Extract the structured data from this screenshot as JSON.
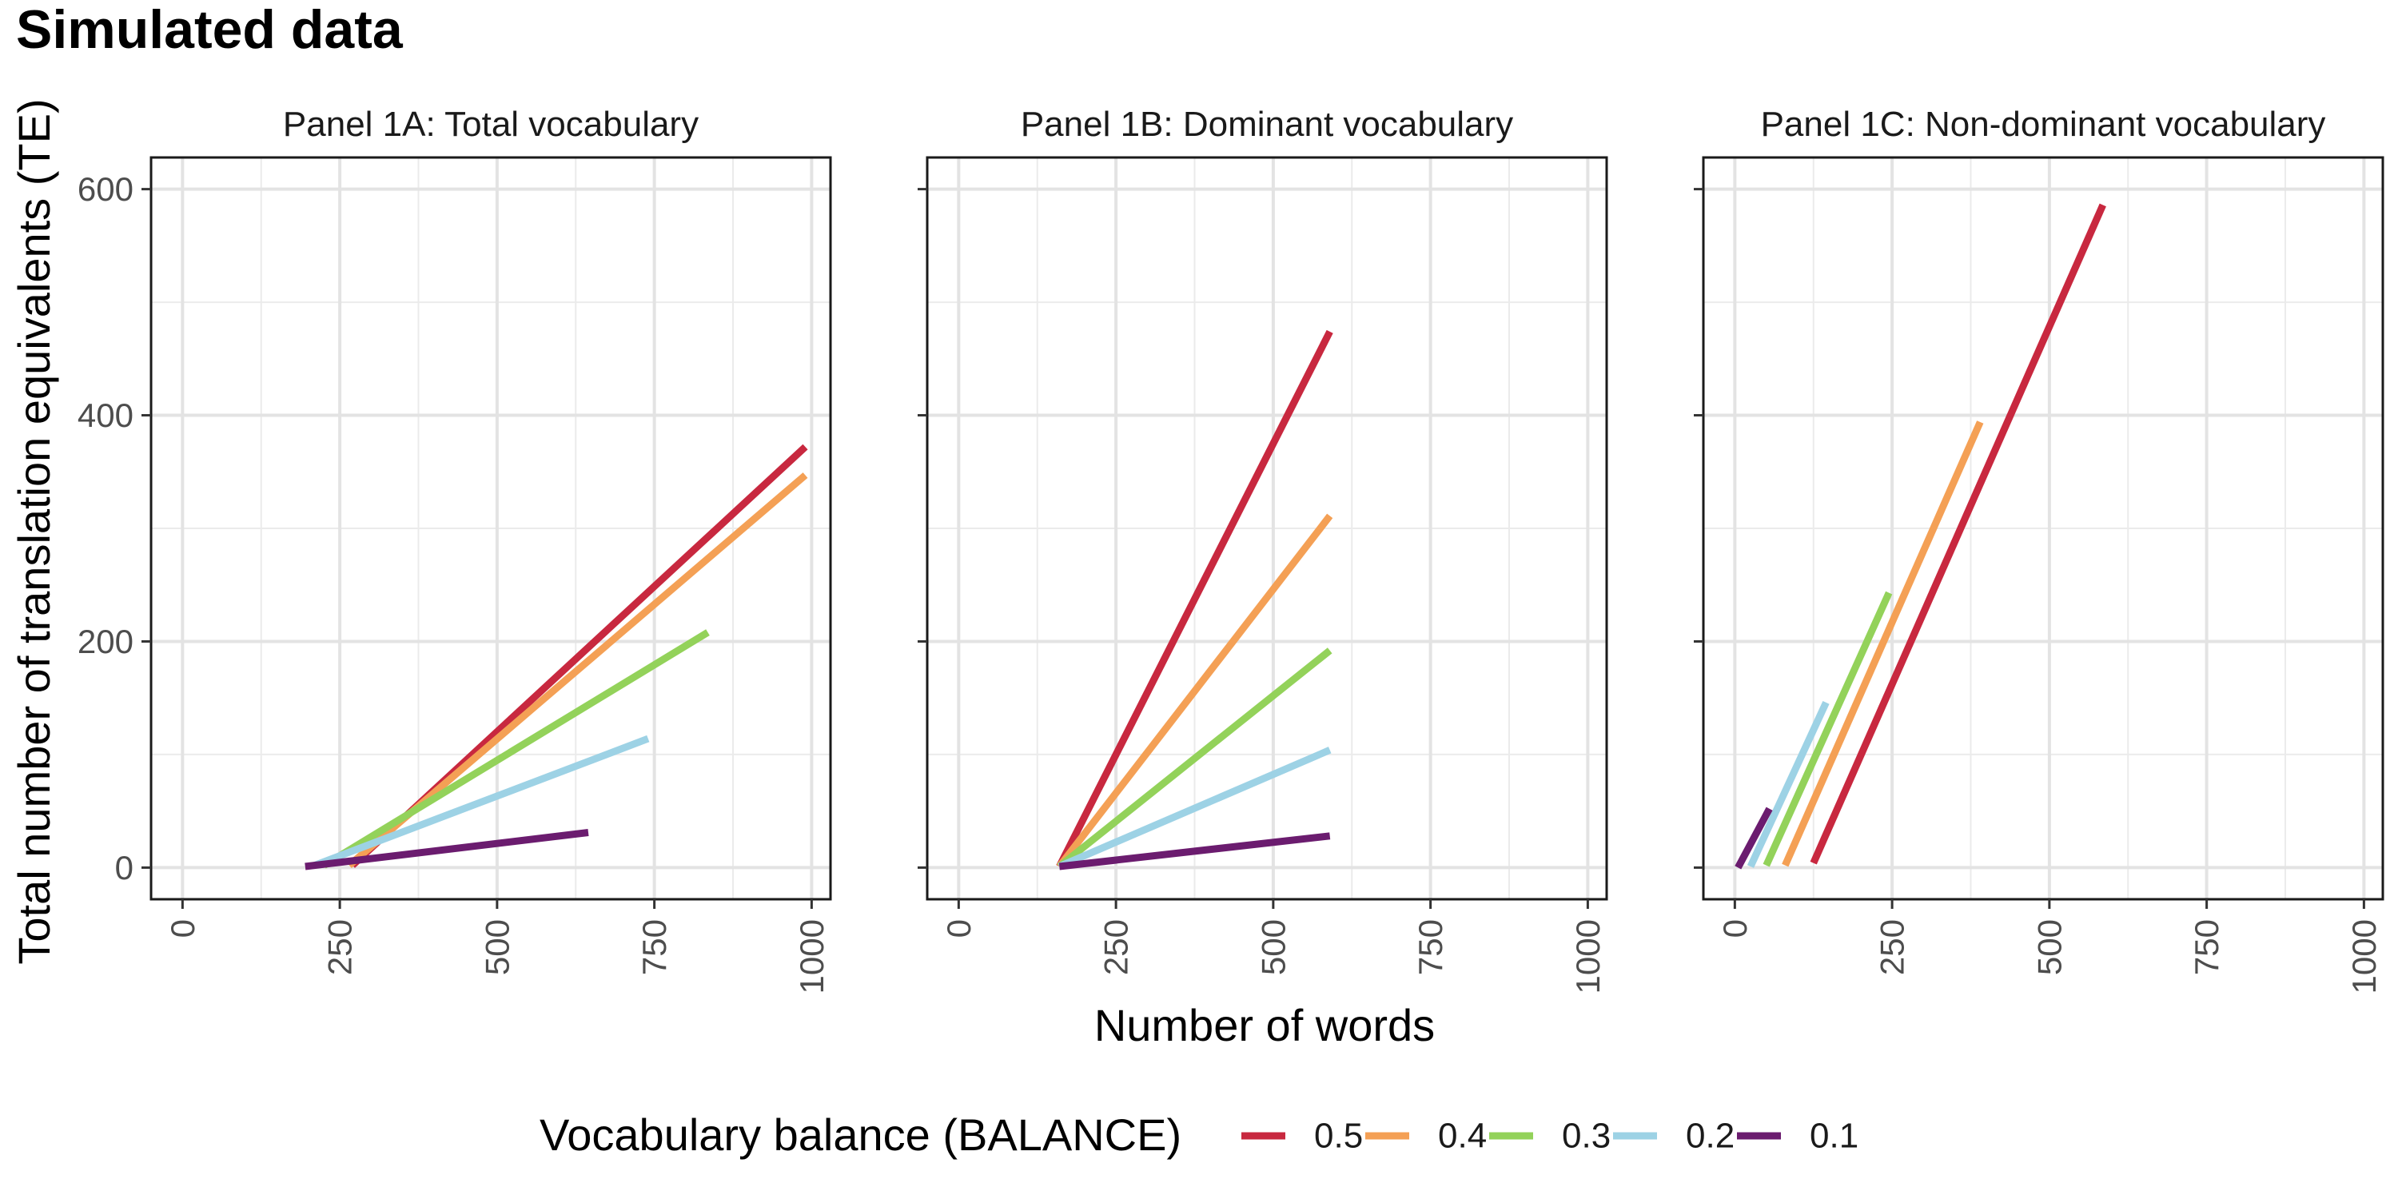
{
  "title": "Simulated data",
  "chart_data": {
    "type": "line",
    "xlabel": "Number of words",
    "ylabel": "Total number of translation equivalents (TE)",
    "xlim": [
      -50,
      1030
    ],
    "ylim": [
      -28,
      628
    ],
    "x_ticks": [
      0,
      250,
      500,
      750,
      1000
    ],
    "y_ticks": [
      0,
      200,
      400,
      600
    ],
    "grid": true,
    "legend_position": "bottom",
    "legend": {
      "title": "Vocabulary balance (BALANCE)",
      "entries": [
        {
          "label": "0.5",
          "color": "#C8283F"
        },
        {
          "label": "0.4",
          "color": "#F4A055"
        },
        {
          "label": "0.3",
          "color": "#93D25A"
        },
        {
          "label": "0.2",
          "color": "#9DD2E5"
        },
        {
          "label": "0.1",
          "color": "#6B1C6F"
        }
      ]
    },
    "panels": [
      {
        "title": "Panel 1A: Total vocabulary",
        "series": [
          {
            "name": "0.5",
            "color": "#C8283F",
            "x": [
              270,
              990
            ],
            "y": [
              2,
              372
            ]
          },
          {
            "name": "0.4",
            "color": "#F4A055",
            "x": [
              265,
              990
            ],
            "y": [
              2,
              347
            ]
          },
          {
            "name": "0.3",
            "color": "#93D25A",
            "x": [
              225,
              835
            ],
            "y": [
              2,
              208
            ]
          },
          {
            "name": "0.2",
            "color": "#9DD2E5",
            "x": [
              210,
              740
            ],
            "y": [
              2,
              114
            ]
          },
          {
            "name": "0.1",
            "color": "#6B1C6F",
            "x": [
              195,
              645
            ],
            "y": [
              1,
              31
            ]
          }
        ]
      },
      {
        "title": "Panel 1B: Dominant vocabulary",
        "series": [
          {
            "name": "0.5",
            "color": "#C8283F",
            "x": [
              160,
              590
            ],
            "y": [
              1,
              474
            ]
          },
          {
            "name": "0.4",
            "color": "#F4A055",
            "x": [
              160,
              590
            ],
            "y": [
              1,
              311
            ]
          },
          {
            "name": "0.3",
            "color": "#93D25A",
            "x": [
              160,
              590
            ],
            "y": [
              1,
              192
            ]
          },
          {
            "name": "0.2",
            "color": "#9DD2E5",
            "x": [
              160,
              590
            ],
            "y": [
              1,
              104
            ]
          },
          {
            "name": "0.1",
            "color": "#6B1C6F",
            "x": [
              160,
              590
            ],
            "y": [
              1,
              28
            ]
          }
        ]
      },
      {
        "title": "Panel 1C: Non-dominant vocabulary",
        "series": [
          {
            "name": "0.5",
            "color": "#C8283F",
            "x": [
              125,
              585
            ],
            "y": [
              4,
              586
            ]
          },
          {
            "name": "0.4",
            "color": "#F4A055",
            "x": [
              80,
              390
            ],
            "y": [
              2,
              394
            ]
          },
          {
            "name": "0.3",
            "color": "#93D25A",
            "x": [
              50,
              245
            ],
            "y": [
              2,
              243
            ]
          },
          {
            "name": "0.2",
            "color": "#9DD2E5",
            "x": [
              25,
              145
            ],
            "y": [
              1,
              146
            ]
          },
          {
            "name": "0.1",
            "color": "#6B1C6F",
            "x": [
              5,
              55
            ],
            "y": [
              0,
              52
            ]
          }
        ]
      }
    ]
  }
}
